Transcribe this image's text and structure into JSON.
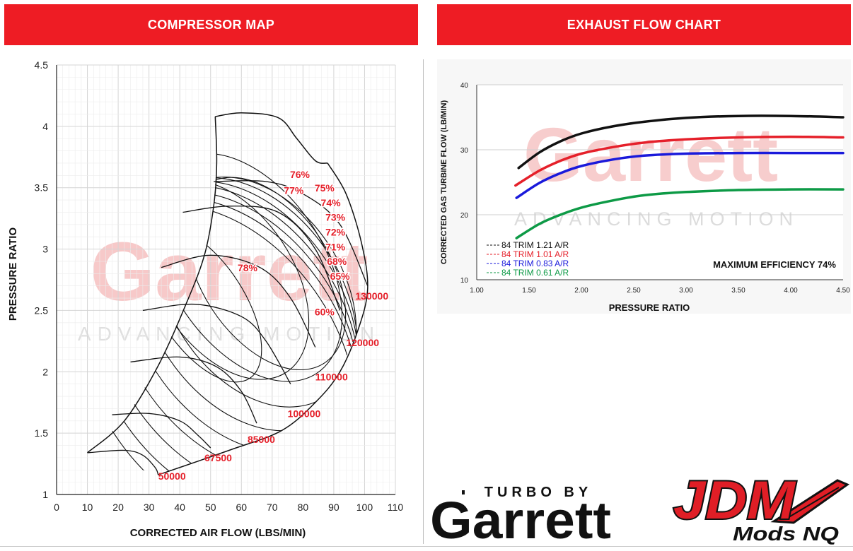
{
  "banners": {
    "left": "COMPRESSOR MAP",
    "right": "EXHAUST FLOW CHART"
  },
  "watermark": {
    "brand": "Garrett",
    "tagline": "ADVANCING MOTION"
  },
  "chart_data": [
    {
      "type": "line",
      "id": "compressor-map",
      "title": "COMPRESSOR MAP",
      "xlabel": "CORRECTED AIR FLOW (LBS/MIN)",
      "ylabel": "PRESSURE RATIO",
      "xlim": [
        0,
        110
      ],
      "ylim": [
        1,
        4.5
      ],
      "x_ticks": [
        "0",
        "10",
        "20",
        "30",
        "40",
        "50",
        "60",
        "70",
        "80",
        "90",
        "100",
        "110"
      ],
      "y_ticks": [
        "1",
        "1.5",
        "2",
        "2.5",
        "3",
        "3.5",
        "4",
        "4.5"
      ],
      "grid": true,
      "surge_line": [
        [
          10,
          1.34
        ],
        [
          22,
          1.6
        ],
        [
          33,
          2.05
        ],
        [
          42,
          2.55
        ],
        [
          48,
          2.95
        ],
        [
          51,
          3.35
        ],
        [
          52,
          3.7
        ],
        [
          51.5,
          4.08
        ]
      ],
      "map_top": [
        [
          51.5,
          4.08
        ],
        [
          60,
          4.11
        ],
        [
          72,
          4.07
        ],
        [
          78,
          3.9
        ],
        [
          84,
          3.72
        ],
        [
          88,
          3.7
        ]
      ],
      "choke_line": [
        [
          88,
          3.7
        ],
        [
          94,
          3.45
        ],
        [
          99,
          3.05
        ],
        [
          101,
          2.68
        ],
        [
          98,
          2.35
        ],
        [
          92,
          2.0
        ],
        [
          84,
          1.75
        ],
        [
          73,
          1.52
        ],
        [
          56,
          1.36
        ],
        [
          33,
          1.16
        ]
      ],
      "speed_lines": [
        {
          "label": "50000",
          "points": [
            [
              10,
              1.34
            ],
            [
              22,
              1.36
            ],
            [
              28,
              1.32
            ],
            [
              32,
              1.22
            ],
            [
              33,
              1.16
            ]
          ]
        },
        {
          "label": "67500",
          "points": [
            [
              18,
              1.65
            ],
            [
              30,
              1.66
            ],
            [
              40,
              1.6
            ],
            [
              46,
              1.48
            ],
            [
              50,
              1.38
            ]
          ]
        },
        {
          "label": "85000",
          "points": [
            [
              24,
              2.08
            ],
            [
              40,
              2.12
            ],
            [
              52,
              2.04
            ],
            [
              60,
              1.84
            ],
            [
              65,
              1.58
            ]
          ]
        },
        {
          "label": "100000",
          "points": [
            [
              28,
              2.5
            ],
            [
              45,
              2.55
            ],
            [
              60,
              2.45
            ],
            [
              68,
              2.25
            ],
            [
              76,
              1.9
            ]
          ]
        },
        {
          "label": "110000",
          "points": [
            [
              34,
              2.85
            ],
            [
              50,
              2.95
            ],
            [
              66,
              2.85
            ],
            [
              76,
              2.6
            ],
            [
              84,
              2.2
            ]
          ]
        },
        {
          "label": "120000",
          "points": [
            [
              41,
              3.3
            ],
            [
              56,
              3.35
            ],
            [
              72,
              3.3
            ],
            [
              84,
              3.0
            ],
            [
              92,
              2.5
            ]
          ]
        },
        {
          "label": "130000",
          "points": [
            [
              51,
              3.55
            ],
            [
              68,
              3.55
            ],
            [
              80,
              3.45
            ],
            [
              92,
              3.2
            ],
            [
              101,
              2.7
            ]
          ]
        }
      ],
      "speed_label_pos": {
        "50000": [
          33,
          1.12
        ],
        "67500": [
          48,
          1.27
        ],
        "85000": [
          62,
          1.42
        ],
        "100000": [
          75,
          1.63
        ],
        "110000": [
          84,
          1.93
        ],
        "120000": [
          94,
          2.21
        ],
        "130000": [
          97,
          2.59
        ]
      },
      "efficiency_islands": [
        {
          "label": "78%",
          "center": [
            47,
            2.55
          ],
          "rx": 14,
          "ry": 0.72
        },
        {
          "label": "77%",
          "center": [
            55,
            2.75
          ],
          "rx": 22,
          "ry": 0.9
        },
        {
          "label": "76%",
          "center": [
            62,
            2.85
          ],
          "rx": 25,
          "ry": 1.03
        },
        {
          "label": "75%",
          "center": [
            68,
            2.8
          ],
          "rx": 21,
          "ry": 0.87
        },
        {
          "label": "74%",
          "center": [
            65,
            2.65
          ],
          "rx": 28,
          "ry": 1.02
        },
        {
          "label": "73%",
          "center": [
            62,
            2.55
          ],
          "rx": 31,
          "ry": 1.12
        },
        {
          "label": "72%",
          "center": [
            60,
            2.45
          ],
          "rx": 33,
          "ry": 1.2
        },
        {
          "label": "71%",
          "center": [
            58,
            2.35
          ],
          "rx": 35,
          "ry": 1.27
        },
        {
          "label": "68%",
          "center": [
            56,
            2.25
          ],
          "rx": 37,
          "ry": 1.32
        },
        {
          "label": "65%",
          "center": [
            54,
            2.15
          ],
          "rx": 39,
          "ry": 1.37
        },
        {
          "label": "60%",
          "center": [
            52,
            2.05
          ],
          "rx": 40,
          "ry": 1.42
        }
      ],
      "efficiency_labels": [
        {
          "label": "76%",
          "x": 79,
          "y": 3.58
        },
        {
          "label": "77%",
          "x": 77,
          "y": 3.45
        },
        {
          "label": "75%",
          "x": 87,
          "y": 3.47
        },
        {
          "label": "74%",
          "x": 89,
          "y": 3.35
        },
        {
          "label": "73%",
          "x": 90.5,
          "y": 3.23
        },
        {
          "label": "72%",
          "x": 90.5,
          "y": 3.11
        },
        {
          "label": "71%",
          "x": 90.5,
          "y": 2.99
        },
        {
          "label": "68%",
          "x": 91,
          "y": 2.87
        },
        {
          "label": "65%",
          "x": 92,
          "y": 2.75
        },
        {
          "label": "78%",
          "x": 62,
          "y": 2.82
        },
        {
          "label": "60%",
          "x": 87,
          "y": 2.46
        }
      ]
    },
    {
      "type": "line",
      "id": "exhaust-flow",
      "title": "EXHAUST FLOW CHART",
      "xlabel": "PRESSURE RATIO",
      "ylabel": "CORRECTED GAS TURBINE FLOW (LB/MIN)",
      "xlim": [
        1.0,
        4.5
      ],
      "ylim": [
        10,
        40
      ],
      "x_ticks": [
        "1.00",
        "1.50",
        "2.00",
        "2.50",
        "3.00",
        "3.50",
        "4.00",
        "4.50"
      ],
      "y_ticks": [
        "10",
        "20",
        "30",
        "40"
      ],
      "grid": true,
      "annotation": "MAXIMUM EFFICIENCY 74%",
      "legend_position": "bottom-left",
      "series": [
        {
          "name": "84 TRIM 1.21 A/R",
          "color": "#111111",
          "x": [
            1.4,
            1.6,
            1.8,
            2.0,
            2.3,
            2.6,
            3.0,
            3.5,
            4.0,
            4.5
          ],
          "y": [
            27.2,
            29.6,
            31.3,
            32.5,
            33.6,
            34.3,
            34.9,
            35.2,
            35.2,
            35.0
          ]
        },
        {
          "name": "84 TRIM 1.01 A/R",
          "color": "#e5202a",
          "x": [
            1.37,
            1.6,
            1.8,
            2.0,
            2.3,
            2.6,
            3.0,
            3.5,
            4.0,
            4.5
          ],
          "y": [
            24.5,
            26.8,
            28.3,
            29.4,
            30.4,
            31.1,
            31.6,
            31.9,
            32.0,
            31.9
          ]
        },
        {
          "name": "84 TRIM 0.83 A/R",
          "color": "#1a1adb",
          "x": [
            1.38,
            1.6,
            1.8,
            2.0,
            2.3,
            2.6,
            3.0,
            3.5,
            4.0,
            4.5
          ],
          "y": [
            22.6,
            24.9,
            26.4,
            27.5,
            28.5,
            29.1,
            29.4,
            29.5,
            29.5,
            29.5
          ]
        },
        {
          "name": "84 TRIM 0.61 A/R",
          "color": "#0d9a46",
          "x": [
            1.38,
            1.6,
            1.8,
            2.0,
            2.3,
            2.6,
            3.0,
            3.5,
            4.0,
            4.5
          ],
          "y": [
            16.4,
            18.6,
            20.0,
            21.1,
            22.2,
            23.0,
            23.5,
            23.8,
            23.9,
            23.9
          ]
        }
      ]
    }
  ],
  "logos": {
    "garrett": {
      "top": "TURBO BY",
      "main": "Garrett"
    },
    "jdm": {
      "main": "JDM",
      "sub": "Mods NQ",
      "colors": {
        "red": "#e01e26",
        "black": "#111111"
      }
    }
  },
  "colors": {
    "banner": "#ee1c24",
    "label_red": "#e5202a"
  }
}
